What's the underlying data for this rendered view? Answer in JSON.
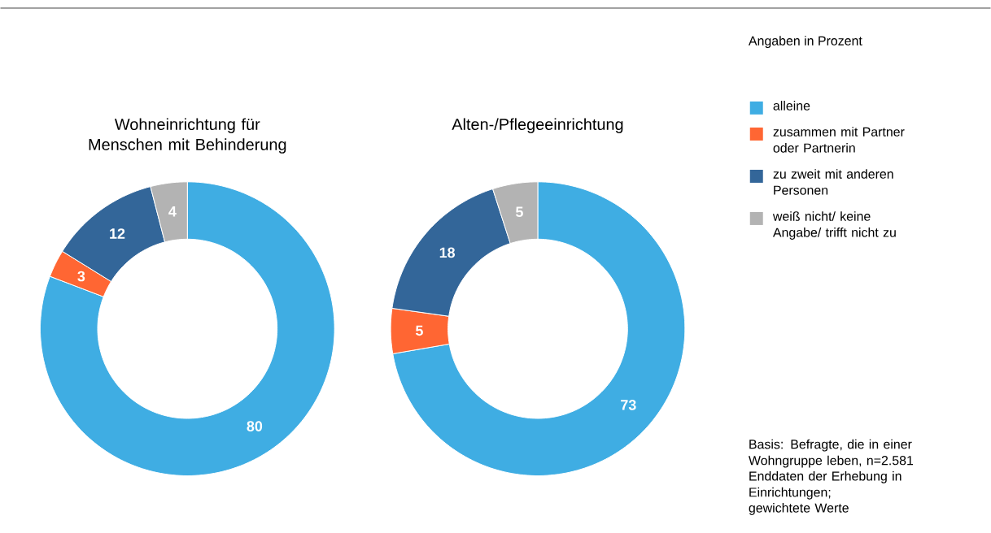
{
  "chart_data": [
    {
      "type": "donut",
      "title": "Wohneinrichtung für Menschen mit Behinderung",
      "categories": [
        null,
        null,
        null,
        null
      ],
      "values": [
        80,
        3,
        12,
        4
      ],
      "colors": [
        "#3fade3",
        "#ff6633",
        "#336699",
        "#b3b3b3"
      ],
      "data_labels": true
    },
    {
      "type": "donut",
      "title": "Alten-/Pflegeeinrichtung",
      "categories": [
        "alleine",
        "zusammen mit Partner oder Partnerin",
        "zu zweit mit anderen Personen",
        "weiß nicht/ keine Angabe/ trifft nicht zu"
      ],
      "values": [
        73,
        5,
        18,
        5
      ],
      "colors": [
        "#3fade3",
        "#ff6633",
        "#336699",
        "#b3b3b3"
      ],
      "data_labels": true,
      "legend": "right",
      "legend_title": "Angaben in Prozent",
      "annotations": [
        "Basis: Befragte, die in einer Wohngruppe leben, n=2.581",
        "Enddaten der Erhebung in Einrichtungen;",
        "gewichtete Werte"
      ]
    }
  ]
}
